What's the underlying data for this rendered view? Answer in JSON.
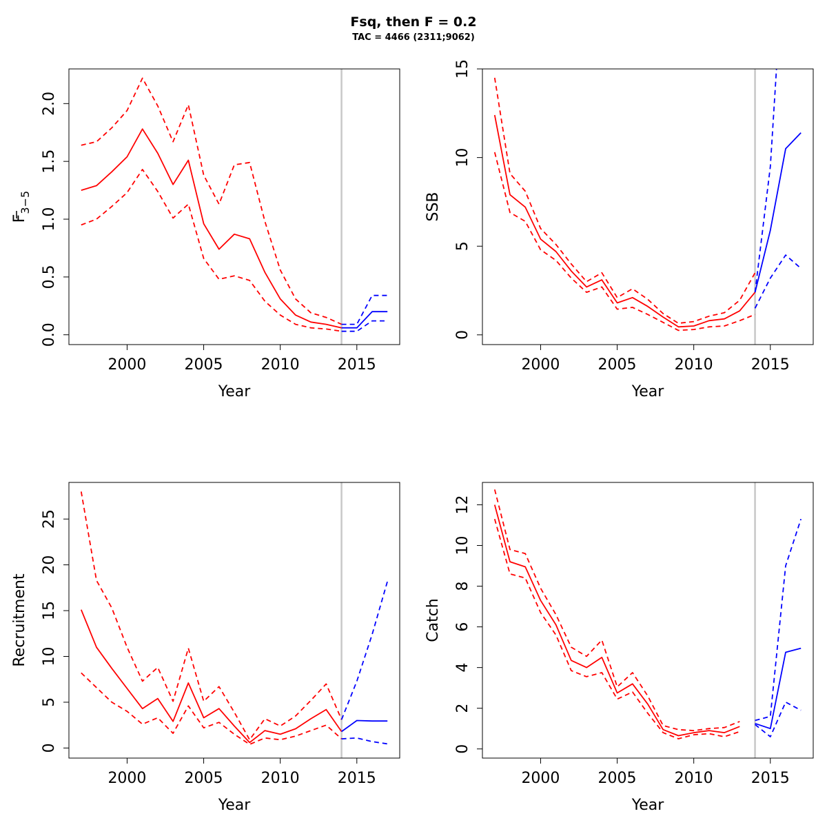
{
  "title": "Fsq, then F = 0.2",
  "subtitle": "TAC = 4466 (2311;9062)",
  "colors": {
    "historical": "#ff0000",
    "projection": "#0000ff",
    "divider": "#c8c8c8"
  },
  "chart_data": [
    {
      "type": "line",
      "xlabel": "Year",
      "ylabel_main": "F",
      "ylabel_sub": "3−5",
      "ylabel_bar": true,
      "xlim": [
        1996.2,
        2017.8
      ],
      "ylim": [
        -0.085,
        2.3
      ],
      "xticks": [
        2000,
        2005,
        2010,
        2015
      ],
      "xtick_labels": [
        "2000",
        "2005",
        "2010",
        "2015"
      ],
      "yticks": [
        0,
        0.5,
        1,
        1.5,
        2
      ],
      "ytick_labels": [
        "0.0",
        "0.5",
        "1.0",
        "1.5",
        "2.0"
      ],
      "divider_x": 2014,
      "series": [
        {
          "role": "historical",
          "style": "solid",
          "x": [
            1997,
            1998,
            1999,
            2000,
            2001,
            2002,
            2003,
            2004,
            2005,
            2006,
            2007,
            2008,
            2009,
            2010,
            2011,
            2012,
            2013,
            2014
          ],
          "y": [
            1.25,
            1.29,
            1.41,
            1.54,
            1.78,
            1.57,
            1.3,
            1.51,
            0.96,
            0.74,
            0.87,
            0.83,
            0.54,
            0.31,
            0.17,
            0.11,
            0.09,
            0.06
          ]
        },
        {
          "role": "historical",
          "style": "dashed",
          "x": [
            1997,
            1998,
            1999,
            2000,
            2001,
            2002,
            2003,
            2004,
            2005,
            2006,
            2007,
            2008,
            2009,
            2010,
            2011,
            2012,
            2013,
            2014
          ],
          "y": [
            1.64,
            1.67,
            1.79,
            1.94,
            2.22,
            1.98,
            1.67,
            1.99,
            1.38,
            1.13,
            1.47,
            1.49,
            0.98,
            0.56,
            0.31,
            0.19,
            0.15,
            0.09
          ]
        },
        {
          "role": "historical",
          "style": "dashed",
          "x": [
            1997,
            1998,
            1999,
            2000,
            2001,
            2002,
            2003,
            2004,
            2005,
            2006,
            2007,
            2008,
            2009,
            2010,
            2011,
            2012,
            2013,
            2014
          ],
          "y": [
            0.95,
            1.0,
            1.11,
            1.23,
            1.43,
            1.24,
            1.01,
            1.13,
            0.66,
            0.48,
            0.51,
            0.47,
            0.29,
            0.17,
            0.09,
            0.06,
            0.05,
            0.03
          ]
        },
        {
          "role": "projection",
          "style": "solid",
          "x": [
            2014,
            2015,
            2016,
            2017
          ],
          "y": [
            0.06,
            0.06,
            0.2,
            0.2
          ]
        },
        {
          "role": "projection",
          "style": "dashed",
          "x": [
            2014,
            2015,
            2016,
            2017
          ],
          "y": [
            0.09,
            0.09,
            0.34,
            0.34
          ]
        },
        {
          "role": "projection",
          "style": "dashed",
          "x": [
            2014,
            2015,
            2016,
            2017
          ],
          "y": [
            0.03,
            0.03,
            0.12,
            0.12
          ]
        }
      ]
    },
    {
      "type": "line",
      "xlabel": "Year",
      "ylabel": "SSB",
      "xlim": [
        1996.2,
        2017.8
      ],
      "ylim": [
        -0.55,
        15
      ],
      "xticks": [
        2000,
        2005,
        2010,
        2015
      ],
      "xtick_labels": [
        "2000",
        "2005",
        "2010",
        "2015"
      ],
      "yticks": [
        0,
        5,
        10,
        15
      ],
      "ytick_labels": [
        "0",
        "5",
        "10",
        "15"
      ],
      "divider_x": 2014,
      "series": [
        {
          "role": "historical",
          "style": "solid",
          "x": [
            1997,
            1998,
            1999,
            2000,
            2001,
            2002,
            2003,
            2004,
            2005,
            2006,
            2007,
            2008,
            2009,
            2010,
            2011,
            2012,
            2013,
            2014
          ],
          "y": [
            12.4,
            7.9,
            7.2,
            5.4,
            4.7,
            3.6,
            2.7,
            3.1,
            1.8,
            2.1,
            1.6,
            1.0,
            0.45,
            0.5,
            0.8,
            0.9,
            1.35,
            2.4
          ]
        },
        {
          "role": "historical",
          "style": "dashed",
          "x": [
            1997,
            1998,
            1999,
            2000,
            2001,
            2002,
            2003,
            2004,
            2005,
            2006,
            2007,
            2008,
            2009,
            2010,
            2011,
            2012,
            2013,
            2014
          ],
          "y": [
            14.5,
            9.1,
            8.1,
            6.0,
            5.1,
            4.0,
            3.0,
            3.5,
            2.1,
            2.6,
            2.0,
            1.2,
            0.65,
            0.75,
            1.05,
            1.25,
            1.95,
            3.5
          ]
        },
        {
          "role": "historical",
          "style": "dashed",
          "x": [
            1997,
            1998,
            1999,
            2000,
            2001,
            2002,
            2003,
            2004,
            2005,
            2006,
            2007,
            2008,
            2009,
            2010,
            2011,
            2012,
            2013,
            2014
          ],
          "y": [
            10.3,
            6.9,
            6.4,
            4.8,
            4.2,
            3.2,
            2.4,
            2.7,
            1.45,
            1.55,
            1.15,
            0.7,
            0.25,
            0.3,
            0.45,
            0.5,
            0.8,
            1.15
          ]
        },
        {
          "role": "projection",
          "style": "solid",
          "x": [
            2014,
            2015,
            2016,
            2017
          ],
          "y": [
            2.4,
            5.9,
            10.5,
            11.4
          ]
        },
        {
          "role": "projection",
          "style": "dashed",
          "x": [
            2014,
            2015,
            2015.4
          ],
          "y": [
            2.4,
            9.5,
            15
          ]
        },
        {
          "role": "projection",
          "style": "dashed",
          "x": [
            2014,
            2015,
            2016,
            2017
          ],
          "y": [
            1.5,
            3.2,
            4.5,
            3.75
          ]
        }
      ]
    },
    {
      "type": "line",
      "xlabel": "Year",
      "ylabel": "Recruitment",
      "xlim": [
        1996.2,
        2017.8
      ],
      "ylim": [
        -1.1,
        29
      ],
      "xticks": [
        2000,
        2005,
        2010,
        2015
      ],
      "xtick_labels": [
        "2000",
        "2005",
        "2010",
        "2015"
      ],
      "yticks": [
        0,
        5,
        10,
        15,
        20,
        25
      ],
      "ytick_labels": [
        "0",
        "5",
        "10",
        "15",
        "20",
        "25"
      ],
      "divider_x": 2014,
      "series": [
        {
          "role": "historical",
          "style": "solid",
          "x": [
            1997,
            1998,
            1999,
            2000,
            2001,
            2002,
            2003,
            2004,
            2005,
            2006,
            2007,
            2008,
            2009,
            2010,
            2011,
            2012,
            2013,
            2014
          ],
          "y": [
            15.1,
            11.0,
            8.7,
            6.5,
            4.3,
            5.4,
            2.9,
            7.1,
            3.3,
            4.3,
            2.4,
            0.6,
            1.9,
            1.5,
            2.1,
            3.2,
            4.2,
            1.8
          ]
        },
        {
          "role": "historical",
          "style": "dashed",
          "x": [
            1997,
            1998,
            1999,
            2000,
            2001,
            2002,
            2003,
            2004,
            2005,
            2006,
            2007,
            2008,
            2009,
            2010,
            2011,
            2012,
            2013,
            2014
          ],
          "y": [
            28.0,
            18.3,
            15.3,
            11.0,
            7.3,
            8.8,
            5.1,
            10.9,
            5.1,
            6.7,
            3.9,
            0.9,
            3.2,
            2.4,
            3.5,
            5.2,
            7.0,
            3.1
          ]
        },
        {
          "role": "historical",
          "style": "dashed",
          "x": [
            1997,
            1998,
            1999,
            2000,
            2001,
            2002,
            2003,
            2004,
            2005,
            2006,
            2007,
            2008,
            2009,
            2010,
            2011,
            2012,
            2013,
            2014
          ],
          "y": [
            8.2,
            6.6,
            5.0,
            4.0,
            2.6,
            3.3,
            1.6,
            4.6,
            2.2,
            2.8,
            1.5,
            0.4,
            1.1,
            0.9,
            1.3,
            1.9,
            2.5,
            1.0
          ]
        },
        {
          "role": "projection",
          "style": "solid",
          "x": [
            2014,
            2015,
            2016,
            2017
          ],
          "y": [
            1.8,
            3.0,
            2.95,
            2.95
          ]
        },
        {
          "role": "projection",
          "style": "dashed",
          "x": [
            2014,
            2015,
            2016,
            2017
          ],
          "y": [
            3.1,
            7.3,
            12.4,
            18.2
          ]
        },
        {
          "role": "projection",
          "style": "dashed",
          "x": [
            2014,
            2015,
            2016,
            2017
          ],
          "y": [
            1.0,
            1.1,
            0.7,
            0.45
          ]
        }
      ]
    },
    {
      "type": "line",
      "xlabel": "Year",
      "ylabel": "Catch",
      "xlim": [
        1996.2,
        2017.8
      ],
      "ylim": [
        -0.45,
        13.1
      ],
      "xticks": [
        2000,
        2005,
        2010,
        2015
      ],
      "xtick_labels": [
        "2000",
        "2005",
        "2010",
        "2015"
      ],
      "yticks": [
        0,
        2,
        4,
        6,
        8,
        10,
        12
      ],
      "ytick_labels": [
        "0",
        "2",
        "4",
        "6",
        "8",
        "10",
        "12"
      ],
      "divider_x": 2014,
      "series": [
        {
          "role": "historical",
          "style": "solid",
          "x": [
            1997,
            1998,
            1999,
            2000,
            2001,
            2002,
            2003,
            2004,
            2005,
            2006,
            2007,
            2008,
            2009,
            2010,
            2011,
            2012,
            2013
          ],
          "y": [
            12.0,
            9.2,
            8.95,
            7.3,
            6.1,
            4.35,
            4.0,
            4.5,
            2.75,
            3.2,
            2.2,
            0.95,
            0.65,
            0.8,
            0.9,
            0.8,
            1.1
          ]
        },
        {
          "role": "historical",
          "style": "dashed",
          "x": [
            1997,
            1998,
            1999,
            2000,
            2001,
            2002,
            2003,
            2004,
            2005,
            2006,
            2007,
            2008,
            2009,
            2010,
            2011,
            2012,
            2013
          ],
          "y": [
            12.75,
            9.8,
            9.6,
            7.9,
            6.6,
            5.0,
            4.55,
            5.35,
            3.05,
            3.75,
            2.6,
            1.15,
            0.95,
            0.9,
            1.0,
            1.05,
            1.35
          ]
        },
        {
          "role": "historical",
          "style": "dashed",
          "x": [
            1997,
            1998,
            1999,
            2000,
            2001,
            2002,
            2003,
            2004,
            2005,
            2006,
            2007,
            2008,
            2009,
            2010,
            2011,
            2012,
            2013
          ],
          "y": [
            11.3,
            8.6,
            8.4,
            6.7,
            5.6,
            3.85,
            3.55,
            3.75,
            2.45,
            2.8,
            1.75,
            0.8,
            0.5,
            0.7,
            0.75,
            0.6,
            0.85
          ]
        },
        {
          "role": "projection",
          "style": "solid",
          "x": [
            2014,
            2015,
            2016,
            2017
          ],
          "y": [
            1.25,
            1.0,
            4.75,
            4.95
          ]
        },
        {
          "role": "projection",
          "style": "dashed",
          "x": [
            2014,
            2015,
            2016,
            2017
          ],
          "y": [
            1.4,
            1.6,
            9.0,
            11.3
          ]
        },
        {
          "role": "projection",
          "style": "dashed",
          "x": [
            2014,
            2015,
            2016,
            2017
          ],
          "y": [
            1.2,
            0.6,
            2.3,
            1.9
          ]
        }
      ]
    }
  ]
}
